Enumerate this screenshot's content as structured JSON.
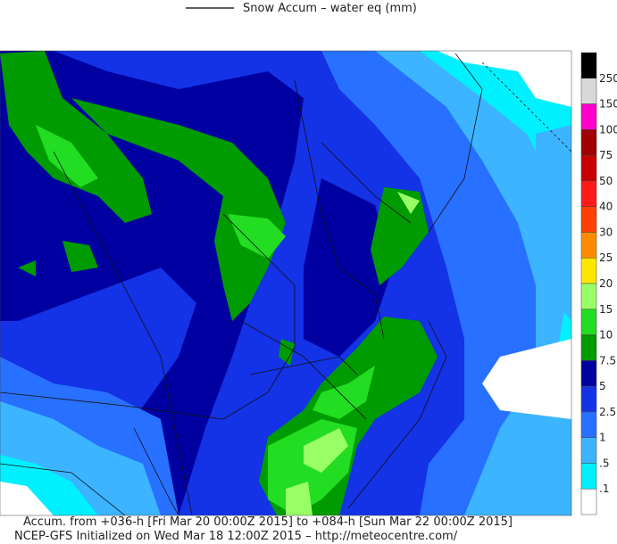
{
  "title": "Snow Accum – water eq (mm)",
  "colorbar": {
    "colors": [
      "#000000",
      "#d8d8d8",
      "#ff00cc",
      "#a00000",
      "#c80000",
      "#ff1a1a",
      "#ff4000",
      "#ff8c00",
      "#ffe600",
      "#99ff66",
      "#22dd22",
      "#009b00",
      "#0000a0",
      "#1432e6",
      "#2870ff",
      "#3cb4ff",
      "#00f0ff",
      "#ffffff"
    ],
    "labels": [
      "250",
      "150",
      "100",
      "75",
      "50",
      "40",
      "30",
      "25",
      "20",
      "15",
      "10",
      "7.5",
      "5",
      "2.5",
      "1",
      ".5",
      ".1"
    ]
  },
  "footer": [
    "Accum. from +036-h [Fri Mar 20 00:00Z 2015] to +084-h [Sun Mar 22 00:00Z 2015]",
    "NCEP-GFS Initialized on Wed Mar 18 12:00Z 2015 – http://meteocentre.com/"
  ]
}
